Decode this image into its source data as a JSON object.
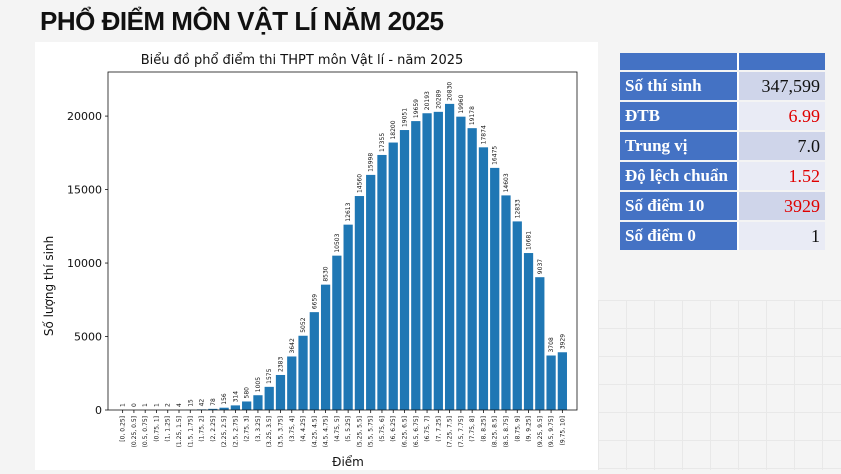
{
  "page_title": "PHỔ ĐIỂM MÔN VẬT LÍ NĂM 2025",
  "stats_table": {
    "header": [
      "",
      ""
    ],
    "rows": [
      {
        "label": "Số thí sinh",
        "value": "347,599",
        "highlight": false
      },
      {
        "label": "ĐTB",
        "value": "6.99",
        "highlight": true
      },
      {
        "label": "Trung vị",
        "value": "7.0",
        "highlight": false
      },
      {
        "label": "Độ lệch chuẩn",
        "value": "1.52",
        "highlight": true
      },
      {
        "label": "Số điểm 10",
        "value": "3929",
        "highlight": true
      },
      {
        "label": "Số điểm 0",
        "value": "1",
        "highlight": false
      }
    ],
    "colors": {
      "header": "#4472c4",
      "highlight_text": "#e00000"
    }
  },
  "chart_data": {
    "type": "bar",
    "title": "Biểu đồ phổ điểm thi THPT môn Vật lí - năm 2025",
    "xlabel": "Điểm",
    "ylabel": "Số lượng thí sinh",
    "ylim": [
      0,
      23000
    ],
    "yticks": [
      0,
      5000,
      10000,
      15000,
      20000
    ],
    "grid": false,
    "bar_color": "#1f77b4",
    "categories": [
      "[0, 0.25]",
      "(0.25, 0.5]",
      "(0.5, 0.75]",
      "(0.75, 1]",
      "(1, 1.25]",
      "(1.25, 1.5]",
      "(1.5, 1.75]",
      "(1.75, 2]",
      "(2, 2.25]",
      "(2.25, 2.5]",
      "(2.5, 2.75]",
      "(2.75, 3]",
      "(3, 3.25]",
      "(3.25, 3.5]",
      "(3.5, 3.75]",
      "(3.75, 4]",
      "(4, 4.25]",
      "(4.25, 4.5]",
      "(4.5, 4.75]",
      "(4.75, 5]",
      "(5, 5.25]",
      "(5.25, 5.5]",
      "(5.5, 5.75]",
      "(5.75, 6]",
      "(6, 6.25]",
      "(6.25, 6.5]",
      "(6.5, 6.75]",
      "(6.75, 7]",
      "(7, 7.25]",
      "(7.25, 7.5]",
      "(7.5, 7.75]",
      "(7.75, 8]",
      "(8, 8.25]",
      "(8.25, 8.5]",
      "(8.5, 8.75]",
      "(8.75, 9]",
      "(9, 9.25]",
      "(9.25, 9.5]",
      "(9.5, 9.75]",
      "(9.75, 10]"
    ],
    "values": [
      1,
      0,
      1,
      1,
      2,
      4,
      15,
      42,
      78,
      156,
      314,
      580,
      1005,
      1575,
      2383,
      3642,
      5052,
      6659,
      8530,
      10503,
      12613,
      14560,
      15998,
      17355,
      18200,
      19051,
      19659,
      20193,
      20289,
      20830,
      19960,
      19178,
      17874,
      16475,
      14603,
      12833,
      10681,
      9037,
      3708,
      3929
    ]
  }
}
